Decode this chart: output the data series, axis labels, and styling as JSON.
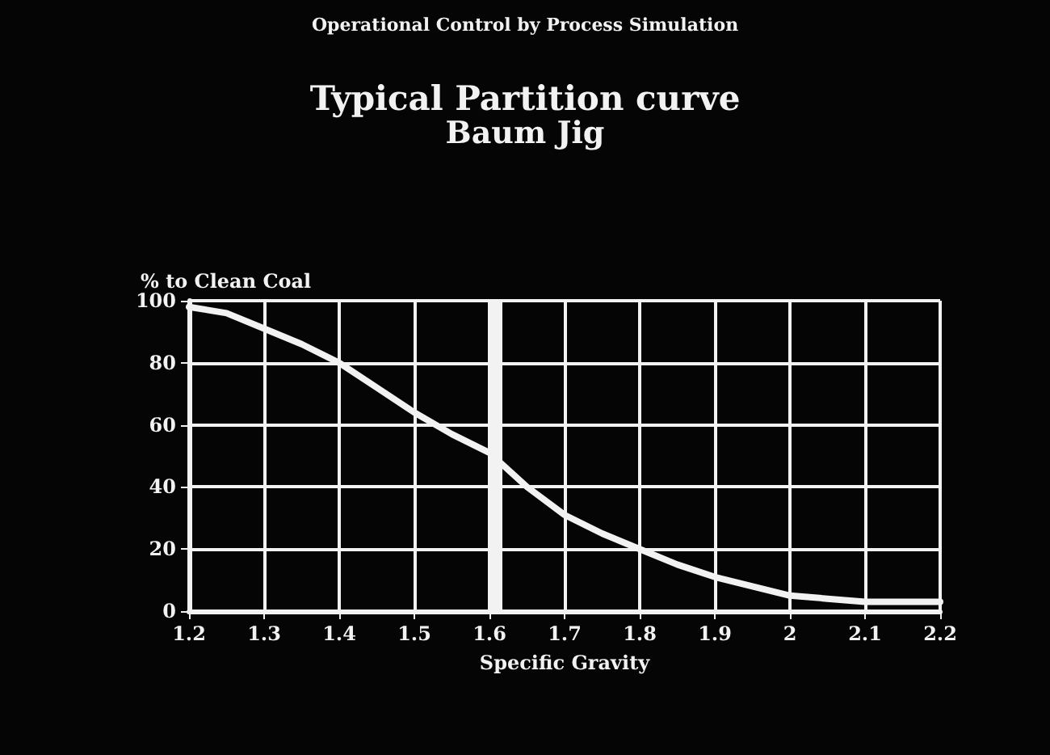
{
  "chart_data": {
    "type": "line",
    "title": "Typical Partition curve",
    "subtitle": "Baum Jig",
    "xlabel": "Specific Gravity",
    "ylabel": "% to Clean Coal",
    "annotations": [
      "Operational Control by Process Simulation"
    ],
    "x": [
      1.2,
      1.25,
      1.3,
      1.35,
      1.4,
      1.45,
      1.5,
      1.55,
      1.6,
      1.65,
      1.7,
      1.75,
      1.8,
      1.85,
      1.9,
      1.95,
      2.0,
      2.05,
      2.1,
      2.15,
      2.2
    ],
    "series": [
      {
        "color": "#f2f2f2",
        "values": [
          98,
          96,
          91,
          86,
          80,
          72,
          64,
          57,
          51,
          40,
          31,
          25,
          20,
          15,
          11,
          8,
          5,
          4,
          3,
          3,
          3
        ]
      }
    ],
    "xlim": [
      1.2,
      2.2
    ],
    "xticks": [
      1.2,
      1.3,
      1.4,
      1.5,
      1.6,
      1.7,
      1.8,
      1.9,
      2,
      2.1,
      2.2
    ],
    "ylim": [
      0,
      100
    ],
    "yticks": [
      0,
      20,
      40,
      60,
      80,
      100
    ],
    "ref_lines": [
      {
        "axis": "x",
        "value": 1.61,
        "color": "#f2f2f2"
      }
    ],
    "grid": true,
    "marker": "none",
    "line_style": "solid"
  }
}
